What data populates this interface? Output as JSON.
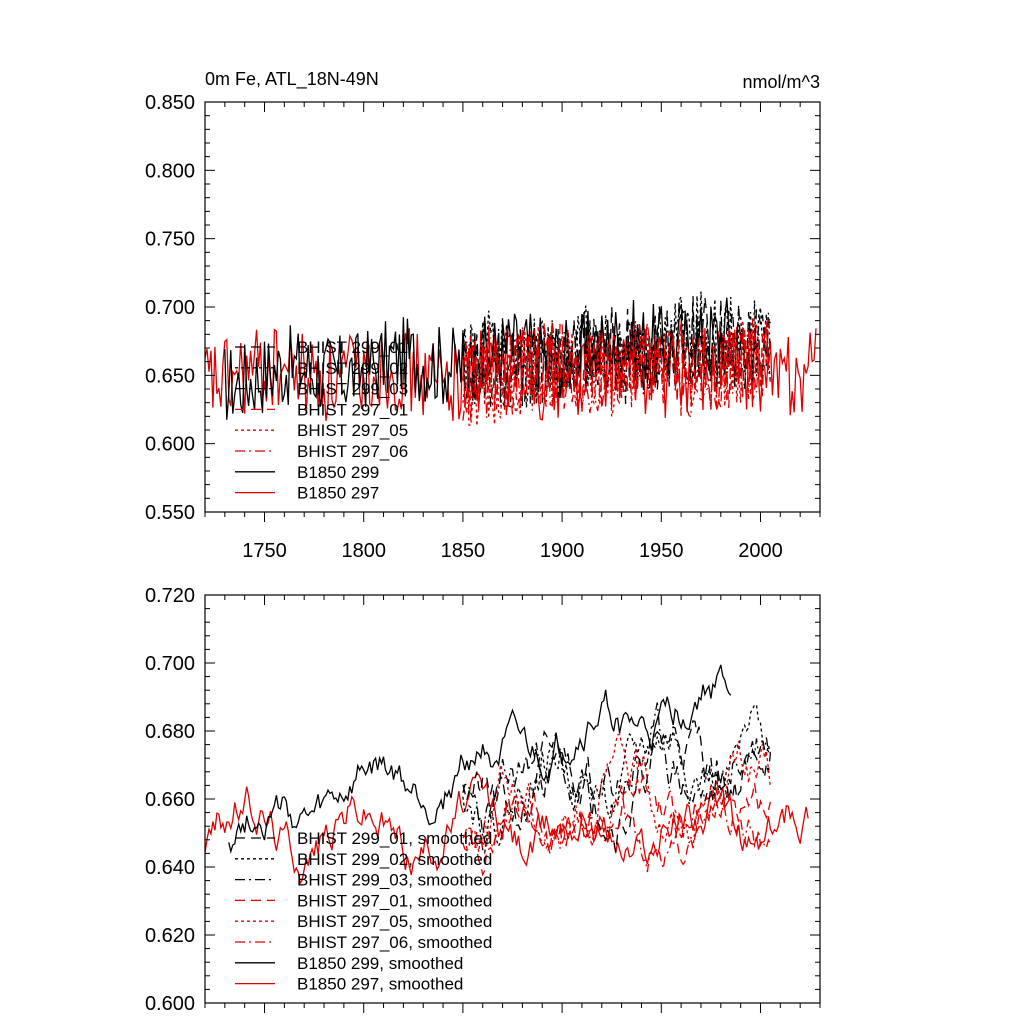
{
  "title_left": "0m Fe, ATL_18N-49N",
  "title_right": "nmol/m^3",
  "chart_data": [
    {
      "type": "line",
      "xlim": [
        1720,
        2030
      ],
      "ylim": [
        0.55,
        0.85
      ],
      "yticks": [
        "0.550",
        "0.600",
        "0.650",
        "0.700",
        "0.750",
        "0.800",
        "0.850"
      ],
      "xticks": [
        "1750",
        "1800",
        "1850",
        "1900",
        "1950",
        "2000"
      ],
      "show_xtick_labels": true,
      "legend_position": "lower-left",
      "series": [
        {
          "name": "BHIST 299_01",
          "color": "#000000",
          "dash": "10,6",
          "x_start": 1850,
          "x_end": 2005,
          "base": 0.655,
          "trend": 0.025,
          "amp": 0.04,
          "seed": 11
        },
        {
          "name": "BHIST 299_02",
          "color": "#000000",
          "dash": "3,3",
          "x_start": 1850,
          "x_end": 2005,
          "base": 0.66,
          "trend": 0.02,
          "amp": 0.042,
          "seed": 12
        },
        {
          "name": "BHIST 299_03",
          "color": "#000000",
          "dash": "10,4,2,4",
          "x_start": 1850,
          "x_end": 2005,
          "base": 0.655,
          "trend": 0.02,
          "amp": 0.04,
          "seed": 13
        },
        {
          "name": "BHIST 297_01",
          "color": "#e00000",
          "dash": "10,6",
          "x_start": 1850,
          "x_end": 2005,
          "base": 0.65,
          "trend": 0.01,
          "amp": 0.04,
          "seed": 14
        },
        {
          "name": "BHIST 297_05",
          "color": "#e00000",
          "dash": "3,3",
          "x_start": 1850,
          "x_end": 2005,
          "base": 0.648,
          "trend": 0.012,
          "amp": 0.04,
          "seed": 15
        },
        {
          "name": "BHIST 297_06",
          "color": "#e00000",
          "dash": "10,4,2,4",
          "x_start": 1850,
          "x_end": 2005,
          "base": 0.648,
          "trend": 0.01,
          "amp": 0.04,
          "seed": 16
        },
        {
          "name": "B1850 299",
          "color": "#000000",
          "dash": "",
          "x_start": 1730,
          "x_end": 1985,
          "base": 0.648,
          "trend": 0.03,
          "amp": 0.038,
          "seed": 17
        },
        {
          "name": "B1850 297",
          "color": "#e00000",
          "dash": "",
          "x_start": 1720,
          "x_end": 2028,
          "base": 0.65,
          "trend": 0.005,
          "amp": 0.04,
          "seed": 18
        }
      ]
    },
    {
      "type": "line",
      "xlim": [
        1720,
        2030
      ],
      "ylim": [
        0.6,
        0.72
      ],
      "yticks": [
        "0.600",
        "0.620",
        "0.640",
        "0.660",
        "0.680",
        "0.700",
        "0.720"
      ],
      "xticks": [
        "1750",
        "1800",
        "1850",
        "1900",
        "1950",
        "2000"
      ],
      "show_xtick_labels": false,
      "legend_position": "lower-left",
      "series": [
        {
          "name": "BHIST 299_01, smoothed",
          "color": "#000000",
          "dash": "10,6",
          "x_start": 1850,
          "x_end": 2005,
          "base": 0.66,
          "trend": 0.015,
          "amp": 0.018,
          "seed": 21
        },
        {
          "name": "BHIST 299_02, smoothed",
          "color": "#000000",
          "dash": "3,3",
          "x_start": 1850,
          "x_end": 2005,
          "base": 0.662,
          "trend": 0.012,
          "amp": 0.018,
          "seed": 22
        },
        {
          "name": "BHIST 299_03, smoothed",
          "color": "#000000",
          "dash": "10,4,2,4",
          "x_start": 1850,
          "x_end": 2005,
          "base": 0.66,
          "trend": 0.01,
          "amp": 0.02,
          "seed": 23
        },
        {
          "name": "BHIST 297_01, smoothed",
          "color": "#e00000",
          "dash": "10,6",
          "x_start": 1850,
          "x_end": 2005,
          "base": 0.652,
          "trend": 0.005,
          "amp": 0.016,
          "seed": 24
        },
        {
          "name": "BHIST 297_05, smoothed",
          "color": "#e00000",
          "dash": "3,3",
          "x_start": 1850,
          "x_end": 2005,
          "base": 0.655,
          "trend": 0.01,
          "amp": 0.018,
          "seed": 25
        },
        {
          "name": "BHIST 297_06, smoothed",
          "color": "#e00000",
          "dash": "10,4,2,4",
          "x_start": 1850,
          "x_end": 2005,
          "base": 0.65,
          "trend": 0.004,
          "amp": 0.016,
          "seed": 26
        },
        {
          "name": "B1850 299, smoothed",
          "color": "#000000",
          "dash": "",
          "x_start": 1732,
          "x_end": 1985,
          "base": 0.65,
          "trend": 0.04,
          "amp": 0.014,
          "seed": 27
        },
        {
          "name": "B1850 297, smoothed",
          "color": "#e00000",
          "dash": "",
          "x_start": 1720,
          "x_end": 2024,
          "base": 0.652,
          "trend": 0.0,
          "amp": 0.016,
          "seed": 28
        }
      ]
    }
  ]
}
